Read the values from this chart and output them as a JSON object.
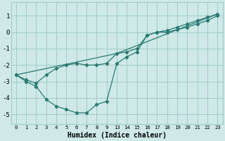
{
  "xlabel": "Humidex (Indice chaleur)",
  "bg_color": "#cee9e7",
  "grid_color": "#a0ccc9",
  "line_color": "#2a7a72",
  "xlabels": [
    "0",
    "1",
    "2",
    "3",
    "4",
    "5",
    "6",
    "7",
    "8",
    "9",
    "13",
    "14",
    "15",
    "16",
    "17",
    "18",
    "19",
    "20",
    "21",
    "22",
    "23"
  ],
  "ylim": [
    -5.6,
    1.8
  ],
  "yticks": [
    -5,
    -4,
    -3,
    -2,
    -1,
    0,
    1
  ],
  "line1_y": [
    -2.6,
    -3.0,
    -3.3,
    -4.1,
    -4.5,
    -4.7,
    -4.9,
    -4.9,
    -4.4,
    -4.2,
    -1.9,
    -1.5,
    -1.2,
    -0.2,
    0.0,
    0.1,
    0.3,
    0.5,
    0.7,
    0.9,
    1.1
  ],
  "line2_y": [
    -2.6,
    -2.9,
    -3.1,
    -2.6,
    -2.2,
    -2.0,
    -1.9,
    -2.0,
    -2.0,
    -1.9,
    -1.3,
    -1.2,
    -1.0,
    -0.2,
    0.0,
    0.0,
    0.15,
    0.3,
    0.5,
    0.7,
    1.0
  ],
  "line3_xi": [
    0,
    10,
    20
  ],
  "line3_y": [
    -2.6,
    -1.3,
    1.1
  ]
}
